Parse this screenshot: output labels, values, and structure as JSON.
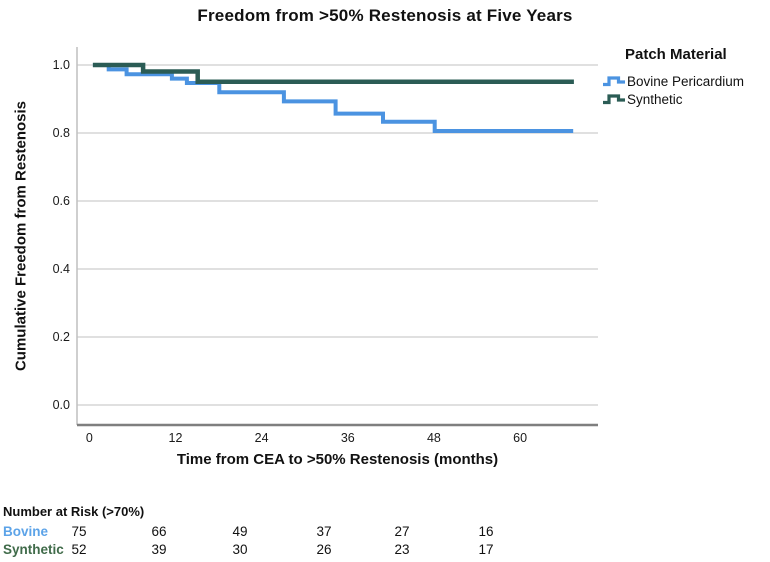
{
  "title": "Freedom from >50% Restenosis at Five Years",
  "chart_data": {
    "type": "line",
    "subtype": "kaplan-meier-step",
    "title": "Freedom from >50% Restenosis at Five Years",
    "xlabel": "Time from CEA to >50% Restenosis (months)",
    "ylabel": "Cumulative Freedom from Restenosis",
    "xlim": [
      -1.7,
      70.5
    ],
    "ylim": [
      -0.06,
      1.05
    ],
    "xticks": [
      0,
      12,
      24,
      36,
      48,
      60
    ],
    "yticks": [
      "0.0",
      "0.2",
      "0.4",
      "0.6",
      "0.8",
      "1.0"
    ],
    "grid": "horizontal-only",
    "legend_position": "right",
    "series": [
      {
        "name": "Bovine Pericardium",
        "color": "#4b93e1",
        "stroke_width": 4,
        "points": [
          [
            0.5,
            1.0
          ],
          [
            2.7,
            1.0
          ],
          [
            2.7,
            0.987
          ],
          [
            5.2,
            0.987
          ],
          [
            5.2,
            0.973
          ],
          [
            11.5,
            0.973
          ],
          [
            11.5,
            0.96
          ],
          [
            13.6,
            0.96
          ],
          [
            13.6,
            0.947
          ],
          [
            18.1,
            0.947
          ],
          [
            18.1,
            0.92
          ],
          [
            27.1,
            0.92
          ],
          [
            27.1,
            0.893
          ],
          [
            34.3,
            0.893
          ],
          [
            34.3,
            0.857
          ],
          [
            40.9,
            0.857
          ],
          [
            40.9,
            0.833
          ],
          [
            48.1,
            0.833
          ],
          [
            48.1,
            0.806
          ],
          [
            67.4,
            0.806
          ]
        ]
      },
      {
        "name": "Synthetic",
        "color": "#2b5c55",
        "stroke_width": 4.5,
        "points": [
          [
            0.5,
            1.0
          ],
          [
            7.5,
            1.0
          ],
          [
            7.5,
            0.981
          ],
          [
            15.1,
            0.981
          ],
          [
            15.1,
            0.951
          ],
          [
            67.5,
            0.951
          ]
        ]
      }
    ]
  },
  "legend": {
    "title": "Patch Material",
    "items": [
      {
        "label": "Bovine Pericardium",
        "color": "#4b93e1",
        "icon": "step-line-icon"
      },
      {
        "label": "Synthetic",
        "color": "#2b5c55",
        "icon": "step-line-icon"
      }
    ]
  },
  "risk_table": {
    "header": "Number at Risk (>70%)",
    "times": [
      0,
      12,
      24,
      36,
      48,
      60
    ],
    "rows": [
      {
        "label": "Bovine",
        "color": "#5ca3e8",
        "values": [
          "75",
          "66",
          "49",
          "37",
          "27",
          "16"
        ]
      },
      {
        "label": "Synthetic",
        "color": "#406b4a",
        "values": [
          "52",
          "39",
          "30",
          "26",
          "23",
          "17"
        ]
      }
    ]
  },
  "colors": {
    "gridline": "#d6d6d6",
    "axis_line": "#7f7f7f",
    "frame_line": "#bfbfbf",
    "tick_text": "#1a1a1a"
  }
}
